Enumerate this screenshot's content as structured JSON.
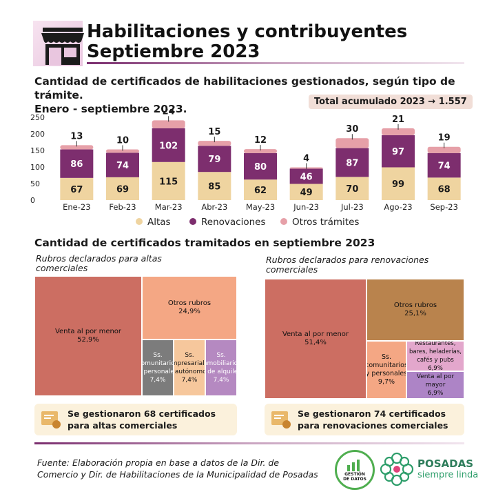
{
  "header": {
    "title_line1": "Habilitaciones y contribuyentes",
    "title_line2": "Septiembre 2023"
  },
  "section1": {
    "title_line1": "Cantidad de certificados de habilitaciones gestionados, según tipo de trámite.",
    "title_line2": "Enero - septiembre 2023.",
    "total_label": "Total acumulado 2023  →  1.557"
  },
  "chart_data": {
    "type": "bar",
    "stacked": true,
    "categories": [
      "Ene-23",
      "Feb-23",
      "Mar-23",
      "Abr-23",
      "May-23",
      "Jun-23",
      "Jul-23",
      "Ago-23",
      "Sep-23"
    ],
    "series": [
      {
        "name": "Altas",
        "values": [
          67,
          69,
          115,
          85,
          62,
          49,
          70,
          99,
          68
        ],
        "color": "#efd4a0"
      },
      {
        "name": "Renovaciones",
        "values": [
          86,
          74,
          102,
          79,
          80,
          46,
          87,
          97,
          74
        ],
        "color": "#7d2e6e"
      },
      {
        "name": "Otros trámites",
        "values": [
          13,
          10,
          24,
          15,
          12,
          4,
          30,
          21,
          19
        ],
        "color": "#e6a0a8"
      }
    ],
    "ylim": [
      0,
      250
    ],
    "yticks": [
      0,
      50,
      100,
      150,
      200,
      250
    ],
    "legend_position": "bottom"
  },
  "section2": {
    "title": "Cantidad de certificados tramitados en septiembre 2023",
    "left_subtitle": "Rubros declarados para altas comerciales",
    "right_subtitle": "Rubros declarados para renovaciones comerciales"
  },
  "treemap_altas": [
    {
      "label": "Venta al por menor",
      "value": "52,9%",
      "color": "#cc6e62"
    },
    {
      "label": "Otros rubros",
      "value": "24,9%",
      "color": "#f4a784"
    },
    {
      "label": "Ss. comunitarios y personales",
      "value": "7,4%",
      "color": "#7c7c7c"
    },
    {
      "label": "Ss. empresariales y autónomos",
      "value": "7,4%",
      "color": "#f6c79c"
    },
    {
      "label": "Ss. Inmobiliarios y de alquiler",
      "value": "7,4%",
      "color": "#b589c1"
    }
  ],
  "treemap_renov": [
    {
      "label": "Venta al por menor",
      "value": "51,4%",
      "color": "#cc6e62"
    },
    {
      "label": "Otros rubros",
      "value": "25,1%",
      "color": "#b9834d"
    },
    {
      "label": "Ss. comunitarios y personales",
      "value": "9,7%",
      "color": "#f4a784"
    },
    {
      "label": "Restaurantes, bares, heladerías, cafés y pubs",
      "value": "6,9%",
      "color": "#e3a7cc"
    },
    {
      "label": "Venta al por mayor",
      "value": "6,9%",
      "color": "#ad84c6"
    }
  ],
  "notes": {
    "left": "Se gestionaron 68 certificados para altas comerciales",
    "right": "Se gestionaron 74 certificados para renovaciones comerciales"
  },
  "footer": {
    "source_line1": "Fuente: Elaboración propia en base a datos de la Dir. de",
    "source_line2": "Comercio  y Dir. de Habilitaciones de la Municipalidad de Posadas",
    "logo1_text": "GESTIÓN DE DATOS",
    "logo2_name": "POSADAS",
    "logo2_tagline": "siempre linda"
  }
}
